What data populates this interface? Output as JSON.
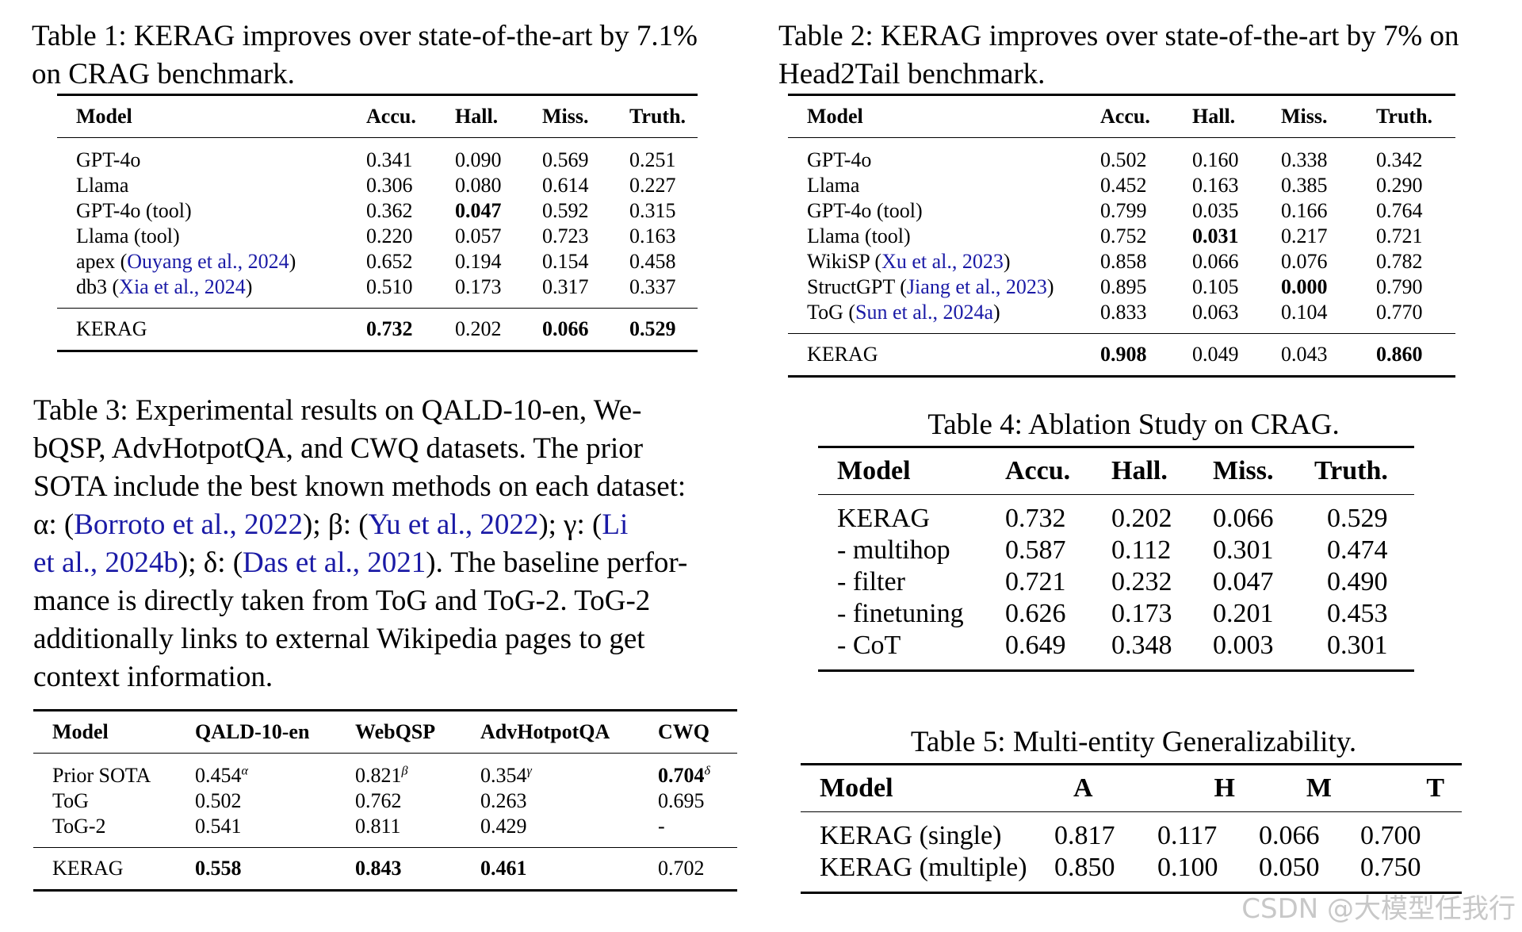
{
  "t1": {
    "caption": "Table 1: KERAG improves over state-of-the-art by 7.1% on CRAG benchmark.",
    "headers": [
      "Model",
      "Accu.",
      "Hall.",
      "Miss.",
      "Truth."
    ],
    "rows": [
      {
        "model": "GPT-4o",
        "cite": "",
        "accu": "0.341",
        "hall": "0.090",
        "miss": "0.569",
        "truth": "0.251"
      },
      {
        "model": "Llama",
        "cite": "",
        "accu": "0.306",
        "hall": "0.080",
        "miss": "0.614",
        "truth": "0.227"
      },
      {
        "model": "GPT-4o (tool)",
        "cite": "",
        "accu": "0.362",
        "hall": "0.047",
        "miss": "0.592",
        "truth": "0.315"
      },
      {
        "model": "Llama (tool)",
        "cite": "",
        "accu": "0.220",
        "hall": "0.057",
        "miss": "0.723",
        "truth": "0.163"
      },
      {
        "model": "apex",
        "cite": "Ouyang et al., 2024",
        "accu": "0.652",
        "hall": "0.194",
        "miss": "0.154",
        "truth": "0.458"
      },
      {
        "model": "db3",
        "cite": "Xia et al., 2024",
        "accu": "0.510",
        "hall": "0.173",
        "miss": "0.317",
        "truth": "0.337"
      }
    ],
    "final": {
      "model": "KERAG",
      "accu": "0.732",
      "hall": "0.202",
      "miss": "0.066",
      "truth": "0.529"
    }
  },
  "t2": {
    "caption": "Table 2: KERAG improves over state-of-the-art by 7% on Head2Tail benchmark.",
    "headers": [
      "Model",
      "Accu.",
      "Hall.",
      "Miss.",
      "Truth."
    ],
    "rows": [
      {
        "model": "GPT-4o",
        "cite": "",
        "accu": "0.502",
        "hall": "0.160",
        "miss": "0.338",
        "truth": "0.342"
      },
      {
        "model": "Llama",
        "cite": "",
        "accu": "0.452",
        "hall": "0.163",
        "miss": "0.385",
        "truth": "0.290"
      },
      {
        "model": "GPT-4o (tool)",
        "cite": "",
        "accu": "0.799",
        "hall": "0.035",
        "miss": "0.166",
        "truth": "0.764"
      },
      {
        "model": "Llama (tool)",
        "cite": "",
        "accu": "0.752",
        "hall": "0.031",
        "miss": "0.217",
        "truth": "0.721"
      },
      {
        "model": "WikiSP",
        "cite": "Xu et al., 2023",
        "accu": "0.858",
        "hall": "0.066",
        "miss": "0.076",
        "truth": "0.782"
      },
      {
        "model": "StructGPT",
        "cite": "Jiang et al., 2023",
        "accu": "0.895",
        "hall": "0.105",
        "miss": "0.000",
        "truth": "0.790"
      },
      {
        "model": "ToG",
        "cite": "Sun et al., 2024a",
        "accu": "0.833",
        "hall": "0.063",
        "miss": "0.104",
        "truth": "0.770"
      }
    ],
    "final": {
      "model": "KERAG",
      "accu": "0.908",
      "hall": "0.049",
      "miss": "0.043",
      "truth": "0.860"
    }
  },
  "t3": {
    "caption_lines": [
      "Table 3:  Experimental results on QALD-10-en, We-",
      "bQSP, AdvHotpotQA, and CWQ datasets.  The prior",
      "SOTA include the best known methods on each dataset:"
    ],
    "caption_l4": {
      "a": "α: (",
      "a_cite": "Borroto et al., 2022",
      "b": "); β: (",
      "b_cite": "Yu et al., 2022",
      "c": "); γ: (",
      "c_cite": "Li"
    },
    "caption_l5": {
      "cite1": "et al., 2024b",
      "a": "); δ: (",
      "cite2": "Das et al., 2021",
      "b": "). The baseline perfor-"
    },
    "caption_tail": [
      "mance is directly taken from ToG and ToG-2.  ToG-2",
      "additionally links to external Wikipedia pages to get",
      "context information."
    ],
    "headers": [
      "Model",
      "QALD-10-en",
      "WebQSP",
      "AdvHotpotQA",
      "CWQ"
    ],
    "rows": [
      {
        "model": "Prior SOTA",
        "qald": "0.454",
        "qald_sup": "α",
        "webqsp": "0.821",
        "webqsp_sup": "β",
        "adv": "0.354",
        "adv_sup": "γ",
        "cwq": "0.704",
        "cwq_sup": "δ"
      },
      {
        "model": "ToG",
        "qald": "0.502",
        "webqsp": "0.762",
        "adv": "0.263",
        "cwq": "0.695"
      },
      {
        "model": "ToG-2",
        "qald": "0.541",
        "webqsp": "0.811",
        "adv": "0.429",
        "cwq": "-"
      }
    ],
    "final": {
      "model": "KERAG",
      "qald": "0.558",
      "webqsp": "0.843",
      "adv": "0.461",
      "cwq": "0.702"
    }
  },
  "t4": {
    "caption": "Table 4: Ablation Study on CRAG.",
    "headers": [
      "Model",
      "Accu.",
      "Hall.",
      "Miss.",
      "Truth."
    ],
    "rows": [
      {
        "model": "KERAG",
        "accu": "0.732",
        "hall": "0.202",
        "miss": "0.066",
        "truth": "0.529"
      },
      {
        "model": "- multihop",
        "accu": "0.587",
        "hall": "0.112",
        "miss": "0.301",
        "truth": "0.474"
      },
      {
        "model": "- filter",
        "accu": "0.721",
        "hall": "0.232",
        "miss": "0.047",
        "truth": "0.490"
      },
      {
        "model": "- finetuning",
        "accu": "0.626",
        "hall": "0.173",
        "miss": "0.201",
        "truth": "0.453"
      },
      {
        "model": "- CoT",
        "accu": "0.649",
        "hall": "0.348",
        "miss": "0.003",
        "truth": "0.301"
      }
    ]
  },
  "t5": {
    "caption": "Table 5: Multi-entity Generalizability.",
    "headers": [
      "Model",
      "A",
      "H",
      "M",
      "T"
    ],
    "rows": [
      {
        "model": "KERAG (single)",
        "a": "0.817",
        "h": "0.117",
        "m": "0.066",
        "t": "0.700"
      },
      {
        "model": "KERAG (multiple)",
        "a": "0.850",
        "h": "0.100",
        "m": "0.050",
        "t": "0.750"
      }
    ]
  },
  "watermark": "CSDN @大模型任我行"
}
